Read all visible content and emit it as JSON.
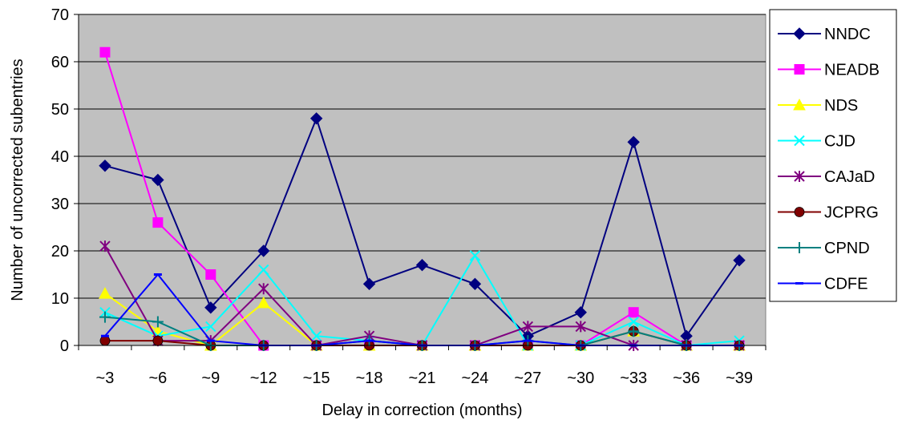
{
  "chart_data": {
    "type": "line",
    "title": "",
    "xlabel": "Delay in correction (months)",
    "ylabel": "Number of uncorrected subentries",
    "categories": [
      "~3",
      "~6",
      "~9",
      "~12",
      "~15",
      "~18",
      "~21",
      "~24",
      "~27",
      "~30",
      "~33",
      "~36",
      "~39"
    ],
    "ylim": [
      0,
      70
    ],
    "yticks": [
      0,
      10,
      20,
      30,
      40,
      50,
      60,
      70
    ],
    "grid": "horizontal",
    "plot_background": "#c0c0c0",
    "legend_position": "right",
    "series": [
      {
        "name": "NNDC",
        "color": "#000080",
        "marker": "diamond",
        "values": [
          38,
          35,
          8,
          20,
          48,
          13,
          17,
          13,
          2,
          7,
          43,
          2,
          18
        ]
      },
      {
        "name": "NEADB",
        "color": "#ff00ff",
        "marker": "square",
        "values": [
          62,
          26,
          15,
          0,
          0,
          0,
          0,
          0,
          0,
          0,
          7,
          0,
          0
        ]
      },
      {
        "name": "NDS",
        "color": "#ffff00",
        "marker": "triangle",
        "values": [
          11,
          3,
          0,
          9,
          0,
          0,
          0,
          0,
          0,
          0,
          3,
          0,
          0
        ]
      },
      {
        "name": "CJD",
        "color": "#00ffff",
        "marker": "x",
        "values": [
          7,
          2,
          4,
          16,
          2,
          1,
          0,
          19,
          0,
          0,
          5,
          0,
          1
        ]
      },
      {
        "name": "CAJaD",
        "color": "#800080",
        "marker": "star",
        "values": [
          21,
          1,
          1,
          12,
          0,
          2,
          0,
          0,
          4,
          4,
          0,
          0,
          0
        ]
      },
      {
        "name": "JCPRG",
        "color": "#800000",
        "marker": "circle",
        "values": [
          1,
          1,
          0,
          0,
          0,
          0,
          0,
          0,
          0,
          0,
          3,
          0,
          0
        ]
      },
      {
        "name": "CPND",
        "color": "#008080",
        "marker": "plus",
        "values": [
          6,
          5,
          0,
          0,
          0,
          1,
          0,
          0,
          1,
          0,
          3,
          0,
          0
        ]
      },
      {
        "name": "CDFE",
        "color": "#0000ff",
        "marker": "dash",
        "values": [
          2,
          15,
          1,
          0,
          0,
          1,
          0,
          0,
          1,
          0,
          0,
          0,
          0
        ]
      }
    ]
  }
}
